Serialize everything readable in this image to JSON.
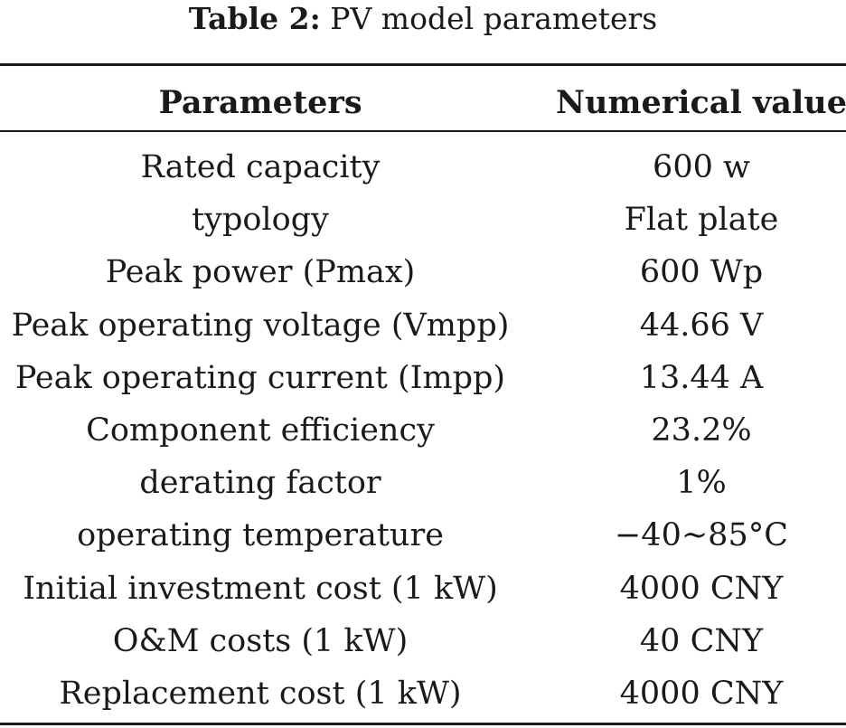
{
  "caption": {
    "label": "Table 2:",
    "title": "PV model parameters"
  },
  "table": {
    "headers": [
      "Parameters",
      "Numerical value"
    ],
    "rows": [
      {
        "parameter": "Rated capacity",
        "value": "600 w"
      },
      {
        "parameter": "typology",
        "value": "Flat plate"
      },
      {
        "parameter": "Peak power (Pmax)",
        "value": "600 Wp"
      },
      {
        "parameter": "Peak operating voltage (Vmpp)",
        "value": "44.66 V"
      },
      {
        "parameter": "Peak operating current (Impp)",
        "value": "13.44 A"
      },
      {
        "parameter": "Component efficiency",
        "value": "23.2%"
      },
      {
        "parameter": "derating factor",
        "value": "1%"
      },
      {
        "parameter": "operating temperature",
        "value": "−40~85°C"
      },
      {
        "parameter": "Initial investment cost (1 kW)",
        "value": "4000 CNY"
      },
      {
        "parameter": "O&M costs (1 kW)",
        "value": "40 CNY"
      },
      {
        "parameter": "Replacement cost (1 kW)",
        "value": "4000 CNY"
      }
    ]
  }
}
